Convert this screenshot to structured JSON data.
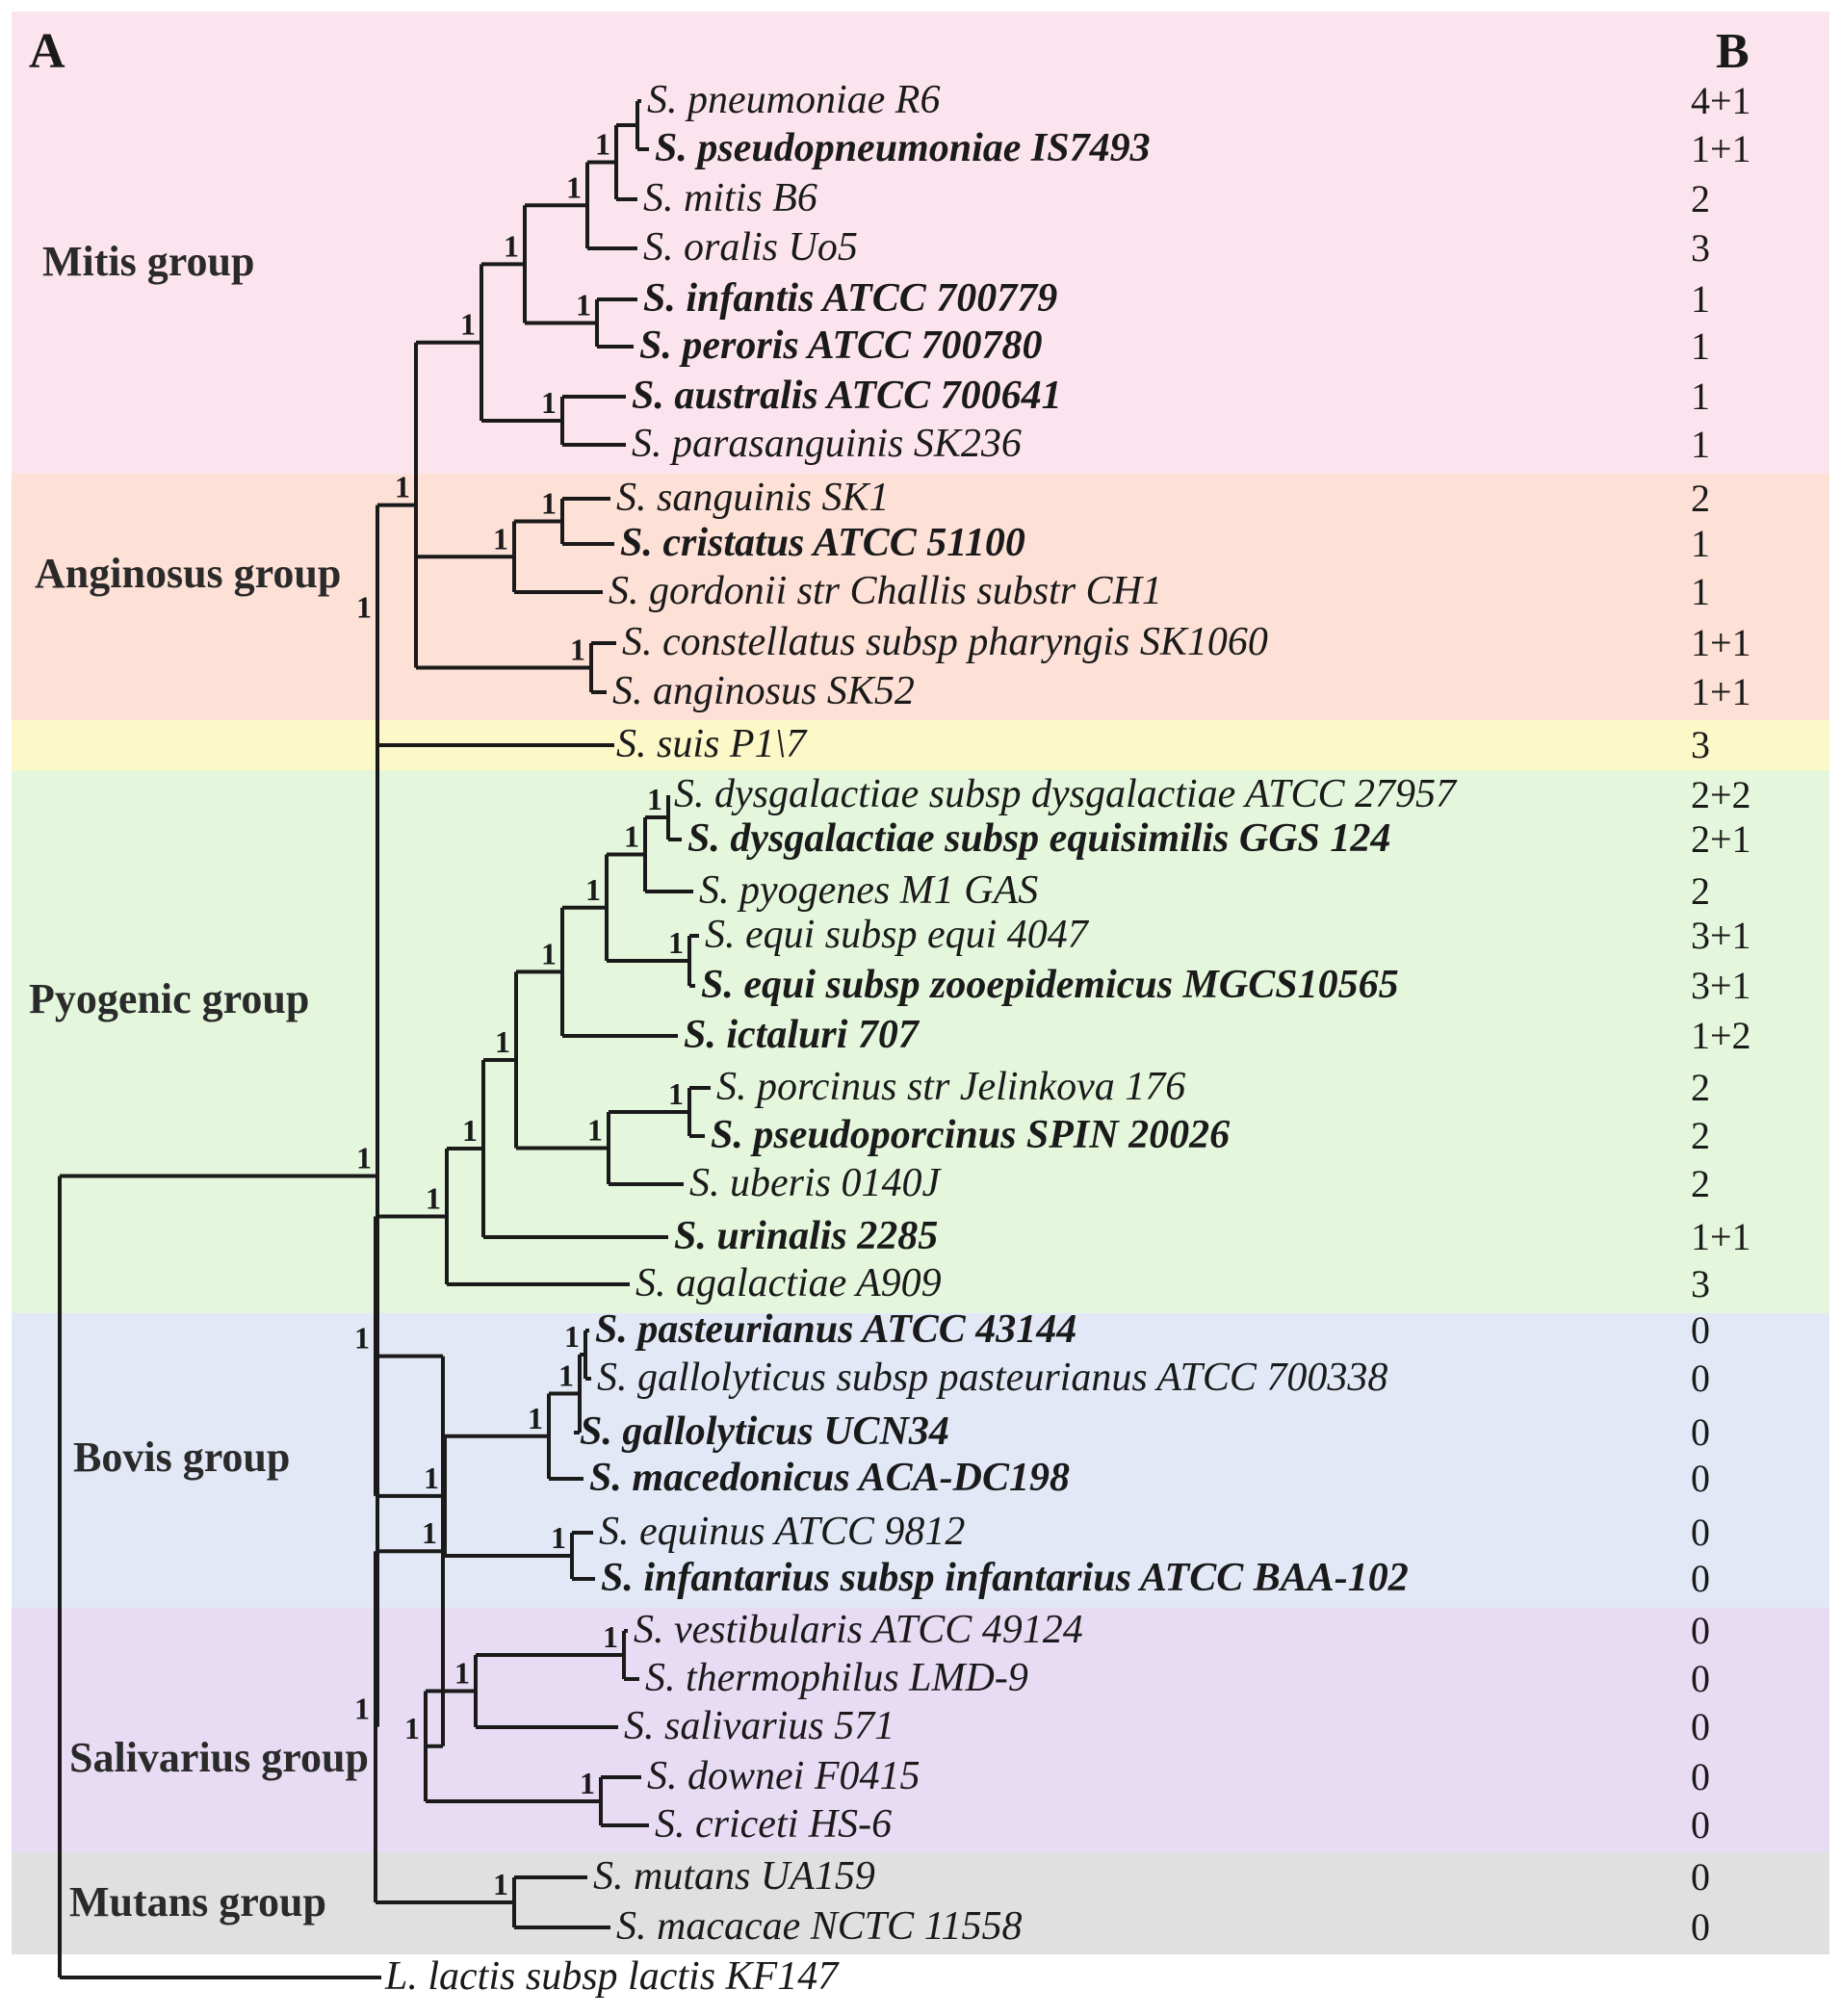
{
  "panels": {
    "a": "A",
    "b": "B"
  },
  "groups": [
    {
      "key": "mitis",
      "label": "Mitis group",
      "color": "#fce4ee"
    },
    {
      "key": "anginosus",
      "label": "Anginosus group",
      "color": "#fde0d6"
    },
    {
      "key": "suis",
      "label": "",
      "color": "#fdf8c8"
    },
    {
      "key": "pyogenic",
      "label": "Pyogenic group",
      "color": "#e4f6dc"
    },
    {
      "key": "bovis",
      "label": "Bovis group",
      "color": "#e2e8f6"
    },
    {
      "key": "salivarius",
      "label": "Salivarius group",
      "color": "#e8dcf4"
    },
    {
      "key": "mutans",
      "label": "Mutans group",
      "color": "#e0e0e0"
    }
  ],
  "taxa": [
    {
      "name": "S. pneumoniae R6",
      "bold": false,
      "count": "4+1"
    },
    {
      "name": "S. pseudopneumoniae IS7493",
      "bold": true,
      "count": "1+1"
    },
    {
      "name": "S. mitis B6",
      "bold": false,
      "count": "2"
    },
    {
      "name": "S. oralis Uo5",
      "bold": false,
      "count": "3"
    },
    {
      "name": "S. infantis ATCC 700779",
      "bold": true,
      "count": "1"
    },
    {
      "name": "S. peroris ATCC 700780",
      "bold": true,
      "count": "1"
    },
    {
      "name": "S. australis ATCC 700641",
      "bold": true,
      "count": "1"
    },
    {
      "name": "S. parasanguinis SK236",
      "bold": false,
      "count": "1"
    },
    {
      "name": "S. sanguinis SK1",
      "bold": false,
      "count": "2"
    },
    {
      "name": "S. cristatus ATCC 51100",
      "bold": true,
      "count": "1"
    },
    {
      "name": "S. gordonii str Challis substr CH1",
      "bold": false,
      "count": "1"
    },
    {
      "name": "S. constellatus subsp pharyngis SK1060",
      "bold": false,
      "count": "1+1"
    },
    {
      "name": "S. anginosus SK52",
      "bold": false,
      "count": "1+1"
    },
    {
      "name": "S. suis  P1\\7",
      "bold": false,
      "count": "3"
    },
    {
      "name": "S. dysgalactiae subsp dysgalactiae ATCC 27957",
      "bold": false,
      "count": "2+2"
    },
    {
      "name": "S. dysgalactiae subsp equisimilis GGS 124",
      "bold": true,
      "count": "2+1"
    },
    {
      "name": "S. pyogenes M1 GAS",
      "bold": false,
      "count": "2"
    },
    {
      "name": "S. equi subsp equi  4047",
      "bold": false,
      "count": "3+1"
    },
    {
      "name": "S. equi subsp zooepidemicus MGCS10565",
      "bold": true,
      "count": "3+1"
    },
    {
      "name": "S. ictaluri 707",
      "bold": true,
      "count": "1+2"
    },
    {
      "name": "S. porcinus str Jelinkova 176",
      "bold": false,
      "count": "2"
    },
    {
      "name": "S. pseudoporcinus SPIN 20026",
      "bold": true,
      "count": "2"
    },
    {
      "name": "S. uberis 0140J",
      "bold": false,
      "count": "2"
    },
    {
      "name": "S. urinalis 2285",
      "bold": true,
      "count": "1+1"
    },
    {
      "name": "S. agalactiae A909",
      "bold": false,
      "count": "3"
    },
    {
      "name": "S. pasteurianus ATCC 43144",
      "bold": true,
      "count": "0"
    },
    {
      "name": "S. gallolyticus subsp pasteurianus ATCC 700338",
      "bold": false,
      "count": "0"
    },
    {
      "name": "S. gallolyticus UCN34",
      "bold": true,
      "count": "0"
    },
    {
      "name": "S. macedonicus ACA-DC198",
      "bold": true,
      "count": "0"
    },
    {
      "name": "S. equinus ATCC 9812",
      "bold": false,
      "count": "0"
    },
    {
      "name": "S. infantarius subsp infantarius ATCC BAA-102",
      "bold": true,
      "count": "0"
    },
    {
      "name": "S. vestibularis ATCC 49124",
      "bold": false,
      "count": "0"
    },
    {
      "name": "S. thermophilus LMD-9",
      "bold": false,
      "count": "0"
    },
    {
      "name": "S. salivarius 571",
      "bold": false,
      "count": "0"
    },
    {
      "name": "S. downei F0415",
      "bold": false,
      "count": "0"
    },
    {
      "name": "S. criceti HS-6",
      "bold": false,
      "count": "0"
    },
    {
      "name": "S. mutans UA159",
      "bold": false,
      "count": "0"
    },
    {
      "name": "S. macacae NCTC 11558",
      "bold": false,
      "count": "0"
    },
    {
      "name": "L. lactis subsp lactis KF147",
      "bold": false,
      "count": ""
    }
  ],
  "support_value": "1"
}
